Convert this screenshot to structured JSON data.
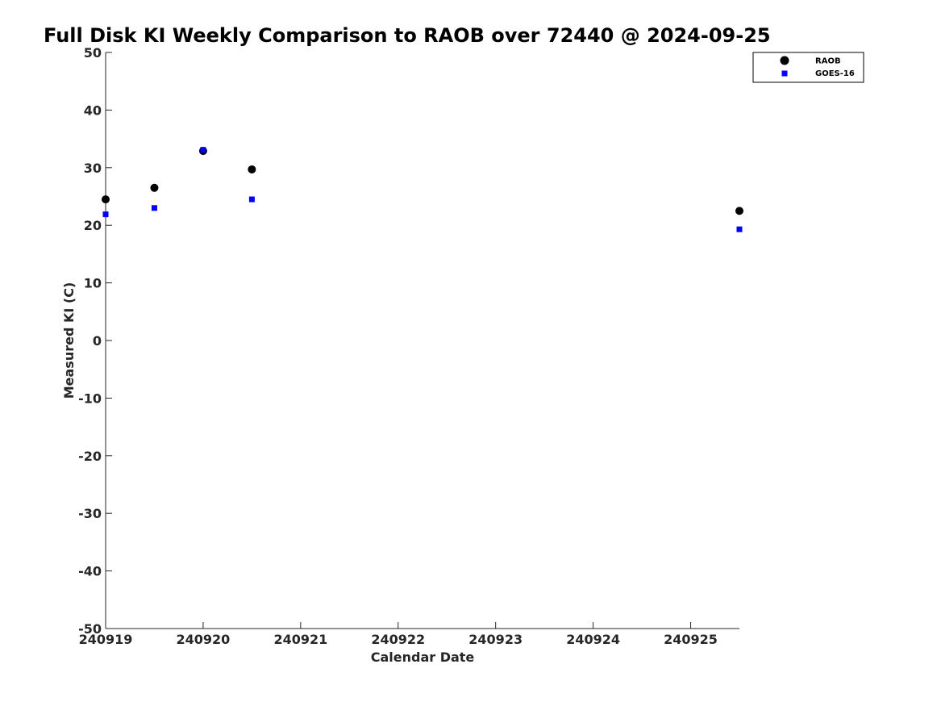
{
  "chart_data": {
    "type": "scatter",
    "title": "Full Disk KI Weekly Comparison to RAOB over 72440 @ 2024-09-25",
    "xlabel": "Calendar Date",
    "ylabel": "Measured KI (C)",
    "x_ticks": [
      "240919",
      "240920",
      "240921",
      "240922",
      "240923",
      "240924",
      "240925"
    ],
    "x_axis_note": "x values are in days from the 240919 tick",
    "xlim": [
      0,
      6.5
    ],
    "ylim": [
      -50,
      50
    ],
    "y_ticks": [
      -50,
      -40,
      -30,
      -20,
      -10,
      0,
      10,
      20,
      30,
      40,
      50
    ],
    "grid": false,
    "legend_position": "top-right",
    "series": [
      {
        "name": "RAOB",
        "marker": "circle",
        "color": "#000000",
        "points": [
          {
            "x": 0.0,
            "y": 24.5
          },
          {
            "x": 0.5,
            "y": 26.5
          },
          {
            "x": 1.0,
            "y": 32.9
          },
          {
            "x": 1.5,
            "y": 29.7
          },
          {
            "x": 6.5,
            "y": 22.5
          }
        ]
      },
      {
        "name": "GOES-16",
        "marker": "square",
        "color": "#0000ff",
        "points": [
          {
            "x": 0.0,
            "y": 21.9
          },
          {
            "x": 0.5,
            "y": 23.0
          },
          {
            "x": 1.0,
            "y": 33.1
          },
          {
            "x": 1.5,
            "y": 24.5
          },
          {
            "x": 6.5,
            "y": 19.3
          }
        ]
      }
    ]
  }
}
